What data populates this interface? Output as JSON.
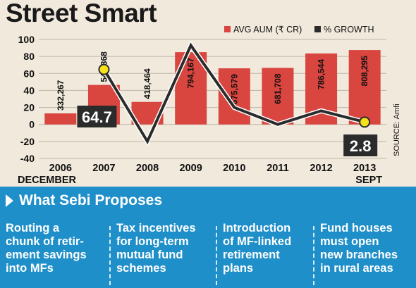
{
  "title": "Street Smart",
  "chart_data": {
    "type": "bar",
    "categories": [
      "2006",
      "2007",
      "2008",
      "2009",
      "2010",
      "2011",
      "2012",
      "2013"
    ],
    "category_sublabels": [
      "DECEMBER",
      "",
      "",
      "",
      "",
      "",
      "",
      "SEPT"
    ],
    "series": [
      {
        "name": "AVG AUM (₹ CR)",
        "type": "bar",
        "color": "#d9453f",
        "values": [
          13.0,
          46.5,
          26.5,
          85.0,
          66.0,
          66.5,
          83.5,
          87.5
        ],
        "labels": [
          "332,267",
          "547,368",
          "418,464",
          "794,167",
          "675,579",
          "681,708",
          "786,544",
          "808,295"
        ]
      },
      {
        "name": "% GROWTH",
        "type": "line",
        "color": "#2b2b2b",
        "values": [
          null,
          64.7,
          -20,
          93,
          20,
          0,
          16,
          2.8
        ]
      }
    ],
    "ylim": [
      -40,
      100
    ],
    "yticks": [
      -40,
      -20,
      0,
      20,
      40,
      60,
      80,
      100
    ],
    "annotations": [
      {
        "category": "2007",
        "text": "64.7"
      },
      {
        "category": "2013",
        "text": "2.8"
      }
    ],
    "source": "SOURCE: Amfi",
    "legend": "top-right"
  },
  "proposals": {
    "heading": "What Sebi Proposes",
    "items": [
      [
        "Routing a",
        "chunk of retir-",
        "ement savings",
        "into MFs"
      ],
      [
        "Tax incentives",
        "for long-term",
        "mutual fund",
        "schemes"
      ],
      [
        "Introduction",
        "of MF-linked",
        "retirement",
        "plans"
      ],
      [
        "Fund houses",
        "must open",
        "new branches",
        "in rural areas"
      ]
    ]
  }
}
